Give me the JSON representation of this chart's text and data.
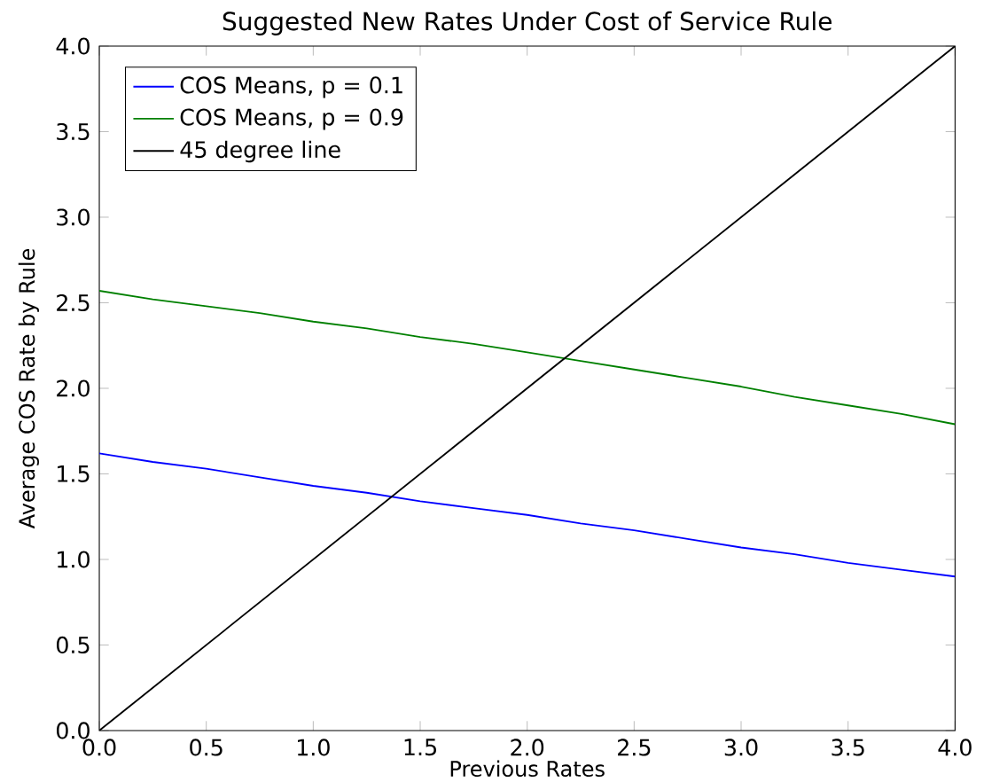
{
  "chart_data": {
    "type": "line",
    "title": "Suggested New Rates Under Cost of Service Rule",
    "xlabel": "Previous Rates",
    "ylabel": "Average COS Rate by Rule",
    "x": [
      0,
      0.25,
      0.5,
      0.75,
      1.0,
      1.25,
      1.5,
      1.75,
      2.0,
      2.25,
      2.5,
      2.75,
      3.0,
      3.25,
      3.5,
      3.75,
      4.0
    ],
    "series": [
      {
        "name": "COS Means, p = 0.1",
        "color": "#0000ff",
        "values": [
          1.62,
          1.57,
          1.53,
          1.48,
          1.43,
          1.39,
          1.34,
          1.3,
          1.26,
          1.21,
          1.17,
          1.12,
          1.07,
          1.03,
          0.98,
          0.94,
          0.9
        ]
      },
      {
        "name": "COS Means, p = 0.9",
        "color": "#008000",
        "values": [
          2.57,
          2.52,
          2.48,
          2.44,
          2.39,
          2.35,
          2.3,
          2.26,
          2.21,
          2.16,
          2.11,
          2.06,
          2.01,
          1.95,
          1.9,
          1.85,
          1.79
        ]
      },
      {
        "name": "45 degree line",
        "color": "#000000",
        "x": [
          0,
          4
        ],
        "values": [
          0,
          4
        ]
      }
    ],
    "xlim": [
      0,
      4
    ],
    "ylim": [
      0,
      4
    ],
    "xticks": [
      {
        "value": 0,
        "label": "0.0"
      },
      {
        "value": 0.5,
        "label": "0.5"
      },
      {
        "value": 1,
        "label": "1.0"
      },
      {
        "value": 1.5,
        "label": "1.5"
      },
      {
        "value": 2,
        "label": "2.0"
      },
      {
        "value": 2.5,
        "label": "2.5"
      },
      {
        "value": 3,
        "label": "3.0"
      },
      {
        "value": 3.5,
        "label": "3.5"
      },
      {
        "value": 4,
        "label": "4.0"
      }
    ],
    "yticks": [
      {
        "value": 0,
        "label": "0.0"
      },
      {
        "value": 0.5,
        "label": "0.5"
      },
      {
        "value": 1,
        "label": "1.0"
      },
      {
        "value": 1.5,
        "label": "1.5"
      },
      {
        "value": 2,
        "label": "2.0"
      },
      {
        "value": 2.5,
        "label": "2.5"
      },
      {
        "value": 3,
        "label": "3.0"
      },
      {
        "value": 3.5,
        "label": "3.5"
      },
      {
        "value": 4,
        "label": "4.0"
      }
    ],
    "grid": false,
    "legend": "top left",
    "marker": "none",
    "line_style": "solid"
  }
}
